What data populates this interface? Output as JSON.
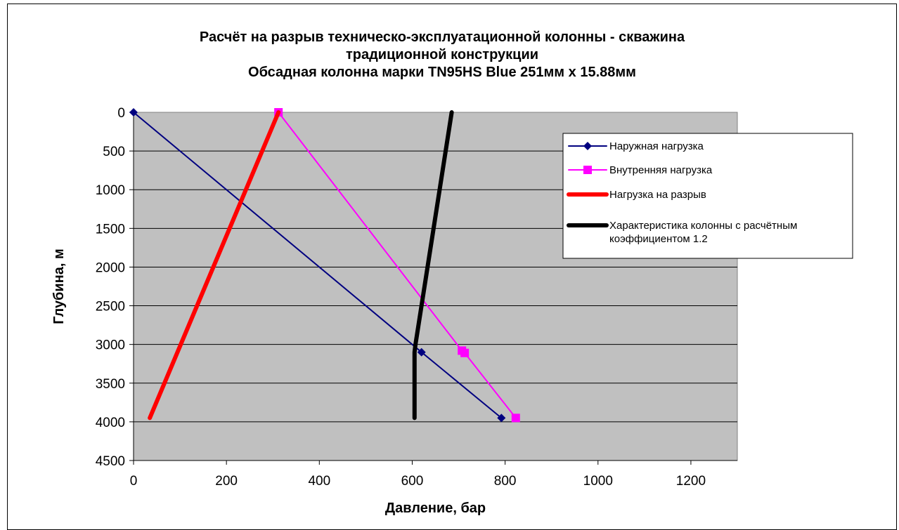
{
  "chart_data": {
    "type": "line",
    "title_lines": [
      "Расчёт на разрыв техническо-эксплуатационной колонны - скважина",
      "традиционной конструкции",
      "Обсадная колонна марки TN95HS Blue 251мм x 15.88мм"
    ],
    "xlabel": "Давление, бар",
    "ylabel": "Глубина, м",
    "xlim": [
      0,
      1300
    ],
    "ylim": [
      0,
      4500
    ],
    "y_inverted": true,
    "x_ticks": [
      "0",
      "200",
      "400",
      "600",
      "800",
      "1000",
      "1200"
    ],
    "y_ticks": [
      "0",
      "500",
      "1000",
      "1500",
      "2000",
      "2500",
      "3000",
      "3500",
      "4000",
      "4500"
    ],
    "plot_background": "#c0c0c0",
    "grid": "horizontal",
    "legend_position": "right",
    "series": [
      {
        "name": "Наружная нагрузка",
        "color": "#000080",
        "marker": "diamond",
        "line_width": "thin",
        "points": [
          [
            0,
            0
          ],
          [
            620,
            3100
          ],
          [
            792,
            3950
          ]
        ]
      },
      {
        "name": "Внутренняя нагрузка",
        "color": "#ff00ff",
        "marker": "square",
        "line_width": "thin",
        "points": [
          [
            312,
            0
          ],
          [
            707,
            3080
          ],
          [
            713,
            3110
          ],
          [
            823,
            3950
          ]
        ]
      },
      {
        "name": "Нагрузка на разрыв",
        "color": "#ff0000",
        "marker": "none",
        "line_width": "thick",
        "points": [
          [
            312,
            0
          ],
          [
            35,
            3950
          ]
        ]
      },
      {
        "name": "Характеристика колонны с расчётным коэффициентом 1.2",
        "color": "#000000",
        "marker": "none",
        "line_width": "thick",
        "points": [
          [
            685,
            0
          ],
          [
            607,
            3000
          ],
          [
            605,
            3100
          ],
          [
            605,
            3950
          ]
        ]
      }
    ]
  }
}
